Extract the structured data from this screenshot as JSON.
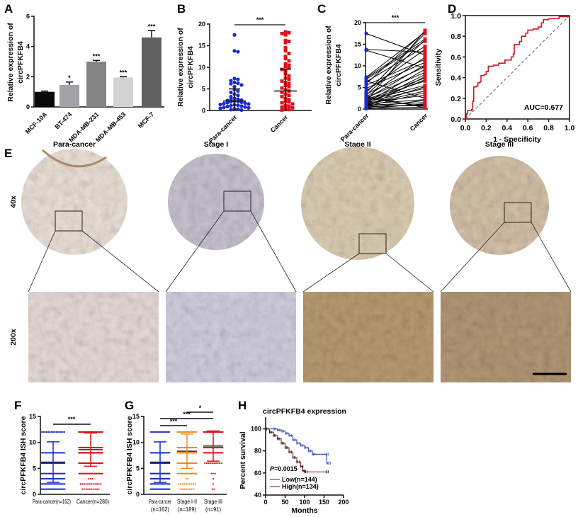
{
  "panel_labels": [
    "A",
    "B",
    "C",
    "D",
    "E",
    "F",
    "G",
    "H"
  ],
  "colors": {
    "blue": "#1a2ccc",
    "red": "#e0101a",
    "orange": "#f08c1e",
    "low": "#3a4fb0",
    "high": "#a03030"
  },
  "panel_e": {
    "columns": [
      "Para-cancer",
      "Stage I",
      "Stage II",
      "Stage III"
    ],
    "rows": [
      "40x",
      "200x"
    ]
  },
  "chart_data": [
    {
      "id": "A",
      "type": "bar",
      "categories": [
        "MCF-10A",
        "BT-474",
        "MDA-MB-231",
        "MDA-MB-453",
        "MCF-7"
      ],
      "values": [
        1.0,
        1.45,
        3.0,
        1.95,
        4.6
      ],
      "errors": [
        0.05,
        0.2,
        0.08,
        0.05,
        0.45
      ],
      "significance": [
        "",
        "*",
        "***",
        "***",
        "***"
      ],
      "bar_colors": [
        "#0a0a0a",
        "#a2a2a6",
        "#848484",
        "#d2d2d2",
        "#606060"
      ],
      "ylabel": [
        "Relative expression of",
        "circPFKFB4"
      ],
      "ylim": [
        0,
        6
      ],
      "yticks": [
        0,
        2,
        4,
        6
      ]
    },
    {
      "id": "B",
      "type": "scatter",
      "categories": [
        "Para-cancer",
        "Cancer"
      ],
      "ylabel": [
        "Relative expression of",
        "circPFKFB4"
      ],
      "ylim": [
        0,
        20
      ],
      "yticks": [
        0,
        5,
        10,
        15,
        20
      ],
      "significance": "***",
      "series": [
        {
          "values": [
            17.5,
            13.8,
            13.6,
            7.4,
            7.2,
            6.9,
            6.5,
            6.3,
            6.2,
            5.9,
            5.5,
            4.8,
            4.5,
            4.2,
            3.8,
            3.5,
            3.2,
            2.8,
            2.6,
            2.5,
            2.4,
            2.3,
            2.2,
            2.1,
            2.0,
            1.9,
            1.8,
            1.7,
            1.6,
            1.5,
            1.4,
            1.3,
            1.2,
            1.1,
            1.0,
            0.9,
            0.8,
            0.7,
            0.6,
            0.5,
            0.4,
            0.3,
            0.2,
            0.1
          ],
          "mean": 2.2,
          "sd_upper": 5.0
        },
        {
          "values": [
            18.2,
            18.0,
            17.8,
            17.5,
            16.2,
            16.0,
            15.7,
            14.5,
            13.8,
            13.2,
            12.5,
            12.0,
            11.5,
            10.8,
            10.5,
            10.2,
            9.8,
            9.5,
            9.2,
            8.5,
            8.0,
            7.5,
            7.2,
            6.8,
            6.5,
            6.2,
            5.8,
            5.5,
            5.2,
            4.8,
            4.5,
            4.2,
            3.8,
            3.5,
            3.2,
            2.8,
            2.5,
            2.2,
            2.0,
            1.8,
            1.5,
            1.2,
            1.0,
            0.8,
            0.6,
            0.4,
            0.2,
            0.1
          ],
          "mean": 4.5,
          "sd_upper": 9.6
        }
      ]
    },
    {
      "id": "C",
      "type": "line",
      "categories": [
        "Para-cancer",
        "Cancer"
      ],
      "ylabel": [
        "Relative expression of",
        "circPFKFB4"
      ],
      "ylim": [
        0,
        20
      ],
      "yticks": [
        0,
        5,
        10,
        15,
        20
      ],
      "significance": "***",
      "pairs": [
        [
          17.5,
          12.5
        ],
        [
          13.8,
          13.2
        ],
        [
          13.6,
          9.5
        ],
        [
          7.4,
          17.8
        ],
        [
          7.2,
          16.2
        ],
        [
          6.9,
          15.7
        ],
        [
          6.5,
          2.5
        ],
        [
          6.3,
          14.5
        ],
        [
          5.9,
          18.0
        ],
        [
          5.5,
          11.5
        ],
        [
          4.8,
          10.8
        ],
        [
          4.2,
          13.8
        ],
        [
          3.8,
          17.5
        ],
        [
          3.5,
          9.8
        ],
        [
          3.2,
          16.0
        ],
        [
          2.8,
          12.0
        ],
        [
          2.6,
          8.5
        ],
        [
          2.4,
          10.2
        ],
        [
          2.2,
          7.2
        ],
        [
          2.0,
          6.5
        ],
        [
          1.9,
          5.5
        ],
        [
          1.8,
          18.2
        ],
        [
          1.6,
          4.8
        ],
        [
          1.5,
          9.2
        ],
        [
          1.4,
          3.2
        ],
        [
          1.3,
          6.8
        ],
        [
          1.2,
          2.2
        ],
        [
          1.1,
          8.0
        ],
        [
          1.0,
          4.2
        ],
        [
          0.9,
          1.5
        ],
        [
          0.8,
          5.2
        ],
        [
          0.7,
          0.8
        ],
        [
          0.6,
          3.8
        ],
        [
          0.5,
          1.0
        ],
        [
          0.4,
          7.5
        ],
        [
          0.3,
          2.0
        ],
        [
          0.2,
          0.4
        ],
        [
          0.1,
          1.2
        ],
        [
          3.0,
          0.3
        ],
        [
          2.5,
          0.6
        ]
      ]
    },
    {
      "id": "D",
      "type": "line",
      "xlabel": "1 - Specificity",
      "ylabel": "Sensitivity",
      "xlim": [
        0,
        1
      ],
      "ylim": [
        0,
        1
      ],
      "ticks": [
        "0.0",
        "0.2",
        "0.4",
        "0.6",
        "0.8",
        "1.0"
      ],
      "annotation": "AUC=0.677",
      "roc": [
        [
          0,
          0
        ],
        [
          0.01,
          0.05
        ],
        [
          0.02,
          0.08
        ],
        [
          0.06,
          0.09
        ],
        [
          0.07,
          0.17
        ],
        [
          0.08,
          0.31
        ],
        [
          0.11,
          0.32
        ],
        [
          0.12,
          0.35
        ],
        [
          0.14,
          0.36
        ],
        [
          0.15,
          0.42
        ],
        [
          0.18,
          0.43
        ],
        [
          0.2,
          0.46
        ],
        [
          0.22,
          0.51
        ],
        [
          0.27,
          0.52
        ],
        [
          0.32,
          0.54
        ],
        [
          0.38,
          0.57
        ],
        [
          0.44,
          0.6
        ],
        [
          0.46,
          0.63
        ],
        [
          0.47,
          0.72
        ],
        [
          0.52,
          0.75
        ],
        [
          0.54,
          0.8
        ],
        [
          0.58,
          0.83
        ],
        [
          0.6,
          0.86
        ],
        [
          0.65,
          0.87
        ],
        [
          0.7,
          0.89
        ],
        [
          0.73,
          0.93
        ],
        [
          0.75,
          0.96
        ],
        [
          0.8,
          0.97
        ],
        [
          0.9,
          0.99
        ],
        [
          1,
          1
        ]
      ]
    },
    {
      "id": "F",
      "type": "scatter",
      "categories": [
        "Para-cancer(n=162)",
        "Cancer(n=280)"
      ],
      "ylabel": "circPFKFB4 ISH score",
      "ylim": [
        0,
        15
      ],
      "yticks": [
        0,
        5,
        10,
        15
      ],
      "significance": "***",
      "series": [
        {
          "score_counts": {
            "1": 30,
            "2": 25,
            "3": 20,
            "4": 30,
            "6": 20,
            "8": 22,
            "12": 15
          },
          "mean": 6.2,
          "sd": [
            2.3,
            10.1
          ]
        },
        {
          "score_counts": {
            "1": 10,
            "2": 12,
            "3": 3,
            "4": 30,
            "6": 55,
            "8": 60,
            "9": 40,
            "12": 70
          },
          "mean": 8.6,
          "sd": [
            5.4,
            11.8
          ]
        }
      ]
    },
    {
      "id": "G",
      "type": "scatter",
      "categories": [
        [
          "Para-cancer",
          "(n=162)"
        ],
        [
          "Stage I-II",
          "(n=189)"
        ],
        [
          "Stage III",
          "(n=91)"
        ]
      ],
      "ylabel": "circPFKFB4 ISH score",
      "ylim": [
        0,
        15
      ],
      "yticks": [
        0,
        5,
        10,
        15
      ],
      "comparisons": [
        {
          "pair": [
            0,
            1
          ],
          "label": "***"
        },
        {
          "pair": [
            0,
            2
          ],
          "label": "***"
        },
        {
          "pair": [
            1,
            2
          ],
          "label": "*"
        }
      ],
      "series": [
        {
          "score_counts": {
            "1": 30,
            "2": 25,
            "3": 20,
            "4": 30,
            "6": 20,
            "8": 22,
            "12": 15
          },
          "mean": 6.2,
          "sd": [
            2.3,
            10.1
          ]
        },
        {
          "score_counts": {
            "1": 8,
            "2": 10,
            "3": 2,
            "4": 30,
            "6": 40,
            "8": 45,
            "9": 24,
            "12": 30
          },
          "mean": 8.3,
          "sd": [
            5.0,
            11.6
          ]
        },
        {
          "score_counts": {
            "1": 2,
            "2": 1,
            "3": 1,
            "4": 3,
            "6": 10,
            "8": 22,
            "9": 22,
            "12": 30
          },
          "mean": 9.3,
          "sd": [
            6.4,
            12.2
          ]
        }
      ]
    },
    {
      "id": "H",
      "type": "line",
      "title": "circPFKFB4 expression",
      "xlabel": "Months",
      "ylabel": "Percent survival",
      "xlim": [
        0,
        200
      ],
      "ylim": [
        40,
        100
      ],
      "xticks": [
        0,
        50,
        100,
        150,
        200
      ],
      "yticks": [
        40,
        60,
        80,
        100
      ],
      "annotation": {
        "p_label": "P",
        "p_value": "=0.0015"
      },
      "series": [
        {
          "name": "Low(n=144)",
          "points": [
            [
              0,
              100
            ],
            [
              20,
              100
            ],
            [
              30,
              99
            ],
            [
              40,
              98
            ],
            [
              50,
              96
            ],
            [
              60,
              94
            ],
            [
              70,
              90
            ],
            [
              80,
              87
            ],
            [
              90,
              85
            ],
            [
              100,
              83
            ],
            [
              110,
              80
            ],
            [
              120,
              77
            ],
            [
              155,
              77
            ],
            [
              157,
              69
            ],
            [
              160,
              69
            ]
          ]
        },
        {
          "name": "High(n=134)",
          "points": [
            [
              0,
              100
            ],
            [
              10,
              97
            ],
            [
              20,
              94
            ],
            [
              30,
              91
            ],
            [
              40,
              87
            ],
            [
              50,
              83
            ],
            [
              60,
              79
            ],
            [
              70,
              74
            ],
            [
              80,
              70
            ],
            [
              90,
              66
            ],
            [
              95,
              62
            ],
            [
              100,
              61
            ],
            [
              155,
              61
            ]
          ]
        }
      ]
    }
  ]
}
